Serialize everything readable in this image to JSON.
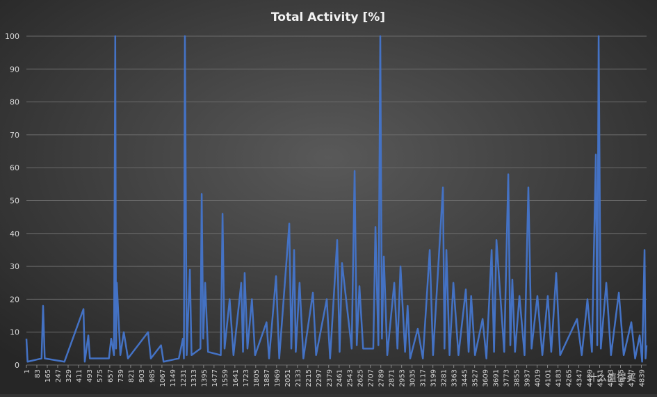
{
  "chart_data": {
    "type": "line",
    "title": "Total Activity [%]",
    "watermark": "什么值得买",
    "xlim": [
      1,
      4880
    ],
    "xticks": [
      1,
      83,
      165,
      247,
      329,
      411,
      493,
      575,
      657,
      739,
      821,
      903,
      985,
      1067,
      1149,
      1231,
      1313,
      1395,
      1477,
      1559,
      1641,
      1723,
      1805,
      1887,
      1969,
      2051,
      2133,
      2215,
      2297,
      2379,
      2461,
      2543,
      2625,
      2707,
      2789,
      2871,
      2953,
      3035,
      3117,
      3199,
      3281,
      3363,
      3445,
      3527,
      3609,
      3691,
      3773,
      3855,
      3937,
      4019,
      4101,
      4183,
      4265,
      4347,
      4429,
      4511,
      4593,
      4675,
      4757,
      4839
    ],
    "ylim": [
      0,
      100
    ],
    "yticks": [
      0,
      10,
      20,
      30,
      40,
      50,
      60,
      70,
      80,
      90,
      100
    ],
    "grid": true,
    "series": [
      {
        "name": "Total Activity",
        "color": "#4472c4",
        "x": [
          1,
          10,
          120,
          132,
          145,
          300,
          450,
          460,
          488,
          500,
          650,
          668,
          690,
          700,
          706,
          712,
          740,
          767,
          800,
          958,
          980,
          1060,
          1080,
          1200,
          1232,
          1240,
          1248,
          1262,
          1287,
          1300,
          1370,
          1380,
          1392,
          1407,
          1430,
          1530,
          1544,
          1560,
          1600,
          1630,
          1691,
          1705,
          1718,
          1740,
          1775,
          1800,
          1890,
          1910,
          1965,
          1990,
          2069,
          2085,
          2107,
          2120,
          2150,
          2180,
          2255,
          2280,
          2364,
          2390,
          2446,
          2465,
          2484,
          2560,
          2583,
          2600,
          2621,
          2650,
          2730,
          2747,
          2770,
          2785,
          2798,
          2813,
          2840,
          2895,
          2920,
          2944,
          2980,
          3000,
          3020,
          3080,
          3120,
          3174,
          3200,
          3278,
          3290,
          3305,
          3330,
          3360,
          3400,
          3458,
          3480,
          3500,
          3530,
          3590,
          3620,
          3661,
          3680,
          3699,
          3760,
          3792,
          3808,
          3824,
          3845,
          3880,
          3920,
          3950,
          3975,
          4021,
          4060,
          4103,
          4130,
          4169,
          4200,
          4333,
          4370,
          4415,
          4450,
          4481,
          4492,
          4503,
          4520,
          4563,
          4600,
          4662,
          4700,
          4760,
          4790,
          4826,
          4845,
          4864,
          4872,
          4880
        ],
        "values": [
          8,
          1,
          2,
          18,
          2,
          1,
          17,
          1,
          9,
          2,
          2,
          8,
          3,
          100,
          5,
          25,
          3,
          10,
          2,
          10,
          2,
          6,
          1,
          2,
          8,
          2,
          100,
          3,
          29,
          3,
          5,
          52,
          8,
          25,
          4,
          3,
          46,
          5,
          20,
          3,
          25,
          4,
          28,
          5,
          20,
          3,
          13,
          2,
          27,
          2,
          43,
          5,
          35,
          4,
          25,
          2,
          22,
          3,
          20,
          2,
          38,
          4,
          31,
          5,
          59,
          6,
          24,
          5,
          5,
          42,
          6,
          100,
          8,
          33,
          3,
          25,
          5,
          30,
          4,
          18,
          2,
          11,
          2,
          35,
          3,
          54,
          5,
          35,
          3,
          25,
          3,
          23,
          4,
          21,
          3,
          14,
          2,
          35,
          4,
          38,
          4,
          58,
          6,
          26,
          4,
          21,
          3,
          54,
          5,
          21,
          3,
          21,
          4,
          28,
          3,
          14,
          3,
          20,
          4,
          64,
          6,
          100,
          5,
          25,
          3,
          22,
          3,
          13,
          2,
          9,
          1,
          35,
          2,
          6
        ]
      }
    ]
  }
}
